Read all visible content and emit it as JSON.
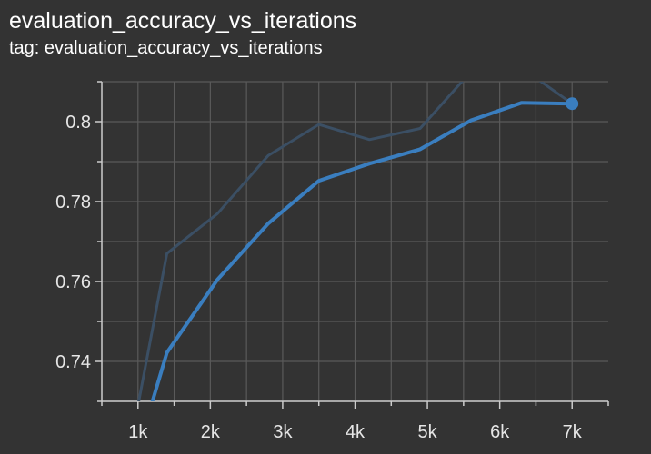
{
  "header": {
    "title": "evaluation_accuracy_vs_iterations",
    "tag": "tag: evaluation_accuracy_vs_iterations"
  },
  "chart_data": {
    "type": "line",
    "title": "evaluation_accuracy_vs_iterations",
    "xlabel": "",
    "ylabel": "",
    "xlim": [
      0.5,
      7.5
    ],
    "ylim": [
      0.73,
      0.81
    ],
    "x_ticks": [
      1,
      2,
      3,
      4,
      5,
      6,
      7
    ],
    "x_tick_labels": [
      "1k",
      "2k",
      "3k",
      "4k",
      "5k",
      "6k",
      "7k"
    ],
    "y_ticks": [
      0.74,
      0.76,
      0.78,
      0.8
    ],
    "y_tick_labels": [
      "0.74",
      "0.76",
      "0.78",
      "0.8"
    ],
    "grid": true,
    "legend": "none",
    "series": [
      {
        "role": "raw",
        "color": "#3b4f64",
        "x": [
          1.0,
          1.4,
          2.1,
          2.8,
          3.5,
          4.2,
          4.9,
          5.6,
          6.3,
          7.0
        ],
        "y": [
          0.729,
          0.767,
          0.777,
          0.7915,
          0.7993,
          0.7955,
          0.7983,
          0.8125,
          0.8135,
          0.8045
        ]
      },
      {
        "role": "smoothed",
        "color": "#3a7ebf",
        "x": [
          1.2,
          1.4,
          2.1,
          2.8,
          3.5,
          4.2,
          4.9,
          5.6,
          6.3,
          7.0
        ],
        "y": [
          0.73,
          0.7422,
          0.7605,
          0.7745,
          0.7852,
          0.7895,
          0.7931,
          0.8003,
          0.8047,
          0.8045
        ]
      }
    ],
    "last_point": {
      "x": 7.0,
      "y": 0.8045,
      "color": "#3a7ebf"
    }
  }
}
